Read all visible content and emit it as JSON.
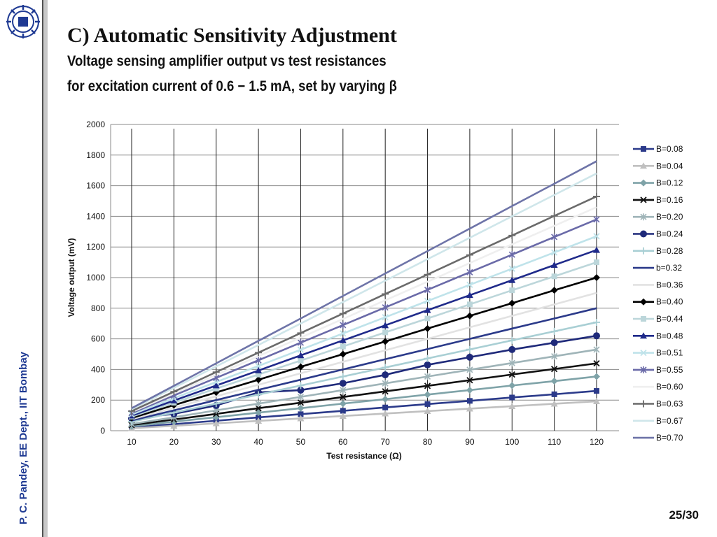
{
  "slide": {
    "title": "C) Automatic Sensitivity Adjustment",
    "subtitle_line1": "Voltage sensing amplifier output vs test resistances",
    "subtitle_line2": "for excitation current of  0.6 − 1.5 mA, set by varying β",
    "side_text": "P. C. Pandey, EE Dept., IIT Bombay",
    "page_number": "25/30",
    "logo_icon": "iit-bombay-logo-icon"
  },
  "chart_data": {
    "type": "line",
    "title": "",
    "xlabel": "Test  resistance (Ω)",
    "ylabel": "Voltage output (mV)",
    "x": [
      10,
      20,
      30,
      40,
      50,
      60,
      70,
      80,
      90,
      100,
      110,
      120
    ],
    "xlim": [
      10,
      120
    ],
    "ylim": [
      0,
      2000
    ],
    "yticks": [
      0,
      200,
      400,
      600,
      800,
      1000,
      1200,
      1400,
      1600,
      1800,
      2000
    ],
    "grid": "horizontal",
    "legend_position": "right",
    "series": [
      {
        "name": "B=0.08",
        "color": "#2b3a8a",
        "marker": "square",
        "values": [
          21,
          43,
          65,
          87,
          108,
          130,
          152,
          174,
          195,
          217,
          238,
          260
        ]
      },
      {
        "name": "B=0.04",
        "color": "#c0c0c0",
        "marker": "triangle",
        "values": [
          16,
          32,
          48,
          64,
          80,
          96,
          112,
          128,
          144,
          160,
          176,
          192
        ]
      },
      {
        "name": "B=0.12",
        "color": "#7fa3a8",
        "marker": "diamond",
        "values": [
          29,
          59,
          88,
          118,
          147,
          177,
          206,
          236,
          265,
          295,
          324,
          354
        ]
      },
      {
        "name": "B=0.16",
        "color": "#111111",
        "marker": "x",
        "values": [
          37,
          73,
          110,
          147,
          183,
          220,
          257,
          293,
          330,
          367,
          403,
          440
        ]
      },
      {
        "name": "B=0.20",
        "color": "#9fb4b8",
        "marker": "star",
        "values": [
          44,
          88,
          133,
          177,
          221,
          265,
          309,
          354,
          398,
          442,
          486,
          530
        ]
      },
      {
        "name": "B=0.24",
        "color": "#1f2a7a",
        "marker": "circle",
        "values": [
          80,
          110,
          165,
          250,
          265,
          310,
          365,
          430,
          480,
          530,
          575,
          620
        ]
      },
      {
        "name": "B=0.28",
        "color": "#a9cfd4",
        "marker": "plus",
        "values": [
          59,
          118,
          177,
          236,
          295,
          354,
          413,
          472,
          531,
          590,
          649,
          708
        ]
      },
      {
        "name": "b=0.32",
        "color": "#2b3a8a",
        "marker": "none",
        "values": [
          67,
          133,
          200,
          267,
          333,
          400,
          467,
          533,
          600,
          667,
          733,
          800
        ]
      },
      {
        "name": "B=0.36",
        "color": "#e2e2e2",
        "marker": "none",
        "values": [
          75,
          150,
          225,
          300,
          375,
          450,
          525,
          600,
          675,
          750,
          825,
          900
        ]
      },
      {
        "name": "B=0.40",
        "color": "#000000",
        "marker": "diamond",
        "values": [
          83,
          167,
          250,
          333,
          417,
          500,
          583,
          667,
          750,
          833,
          917,
          1000
        ]
      },
      {
        "name": "B=0.44",
        "color": "#bcd6da",
        "marker": "square",
        "values": [
          92,
          183,
          275,
          367,
          458,
          550,
          642,
          733,
          825,
          917,
          1008,
          1100
        ]
      },
      {
        "name": "B=0.48",
        "color": "#1f2a8a",
        "marker": "triangle",
        "values": [
          98,
          197,
          295,
          393,
          492,
          590,
          688,
          787,
          885,
          983,
          1082,
          1180
        ]
      },
      {
        "name": "B=0.51",
        "color": "#bfe3ea",
        "marker": "x",
        "values": [
          106,
          212,
          318,
          423,
          529,
          635,
          741,
          847,
          953,
          1058,
          1164,
          1270
        ]
      },
      {
        "name": "B=0.55",
        "color": "#6a6aa8",
        "marker": "star",
        "values": [
          115,
          230,
          345,
          460,
          575,
          690,
          805,
          920,
          1035,
          1150,
          1265,
          1380
        ]
      },
      {
        "name": "B=0.60",
        "color": "#efefef",
        "marker": "none",
        "values": [
          122,
          243,
          365,
          487,
          608,
          730,
          852,
          973,
          1095,
          1217,
          1338,
          1460
        ]
      },
      {
        "name": "B=0.63",
        "color": "#6a6a6a",
        "marker": "plus",
        "values": [
          128,
          255,
          383,
          510,
          638,
          765,
          893,
          1020,
          1148,
          1275,
          1403,
          1530
        ]
      },
      {
        "name": "B=0.67",
        "color": "#cfe6ea",
        "marker": "none",
        "values": [
          140,
          280,
          420,
          560,
          700,
          840,
          980,
          1120,
          1260,
          1400,
          1540,
          1680
        ]
      },
      {
        "name": "B=0.70",
        "color": "#6e74a8",
        "marker": "none",
        "values": [
          147,
          293,
          440,
          587,
          733,
          880,
          1027,
          1173,
          1320,
          1467,
          1613,
          1760
        ]
      }
    ]
  }
}
